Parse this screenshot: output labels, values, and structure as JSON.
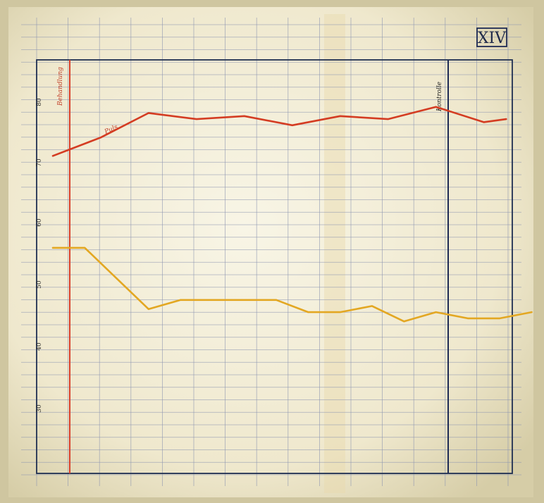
{
  "plate_label": "XIV",
  "colors": {
    "paper": "#f3efdc",
    "grid": "#8a93b0",
    "frame": "#1f2f52",
    "red_line": "#d43c22",
    "yellow_line": "#e3a722",
    "vertical_red": "#d9412c",
    "vertical_dark": "#1e2b55"
  },
  "chart_data": {
    "type": "line",
    "title": "",
    "xlabel": "",
    "ylabel": "",
    "x": [
      0,
      1,
      2,
      3,
      4,
      5,
      6,
      7,
      8,
      9,
      10,
      11,
      12,
      13,
      14
    ],
    "ylim": [
      40,
      90
    ],
    "y_ticks": [
      "80",
      "70",
      "60",
      "50",
      "40",
      "30"
    ],
    "annotations": {
      "red_marker": "Behandlung",
      "dark_marker": "Kontrolle",
      "curve_note": "Puls"
    },
    "series": [
      {
        "key": "upper",
        "color": "#d43c22",
        "x": [
          0,
          1.5,
          3,
          4.5,
          6,
          7.5,
          9,
          10.5,
          12,
          13.5,
          14.2
        ],
        "values": [
          71,
          74,
          78,
          77,
          77.5,
          76,
          77.5,
          77,
          79,
          76.5,
          77
        ]
      },
      {
        "key": "lower",
        "color": "#e3a722",
        "x": [
          0,
          1,
          3,
          4,
          5,
          7,
          8,
          9,
          10,
          11,
          12,
          13,
          14,
          15
        ],
        "values": [
          56,
          56,
          46,
          47.5,
          47.5,
          47.5,
          45.5,
          45.5,
          46.5,
          44,
          45.5,
          44.5,
          44.5,
          45.5
        ]
      }
    ]
  }
}
